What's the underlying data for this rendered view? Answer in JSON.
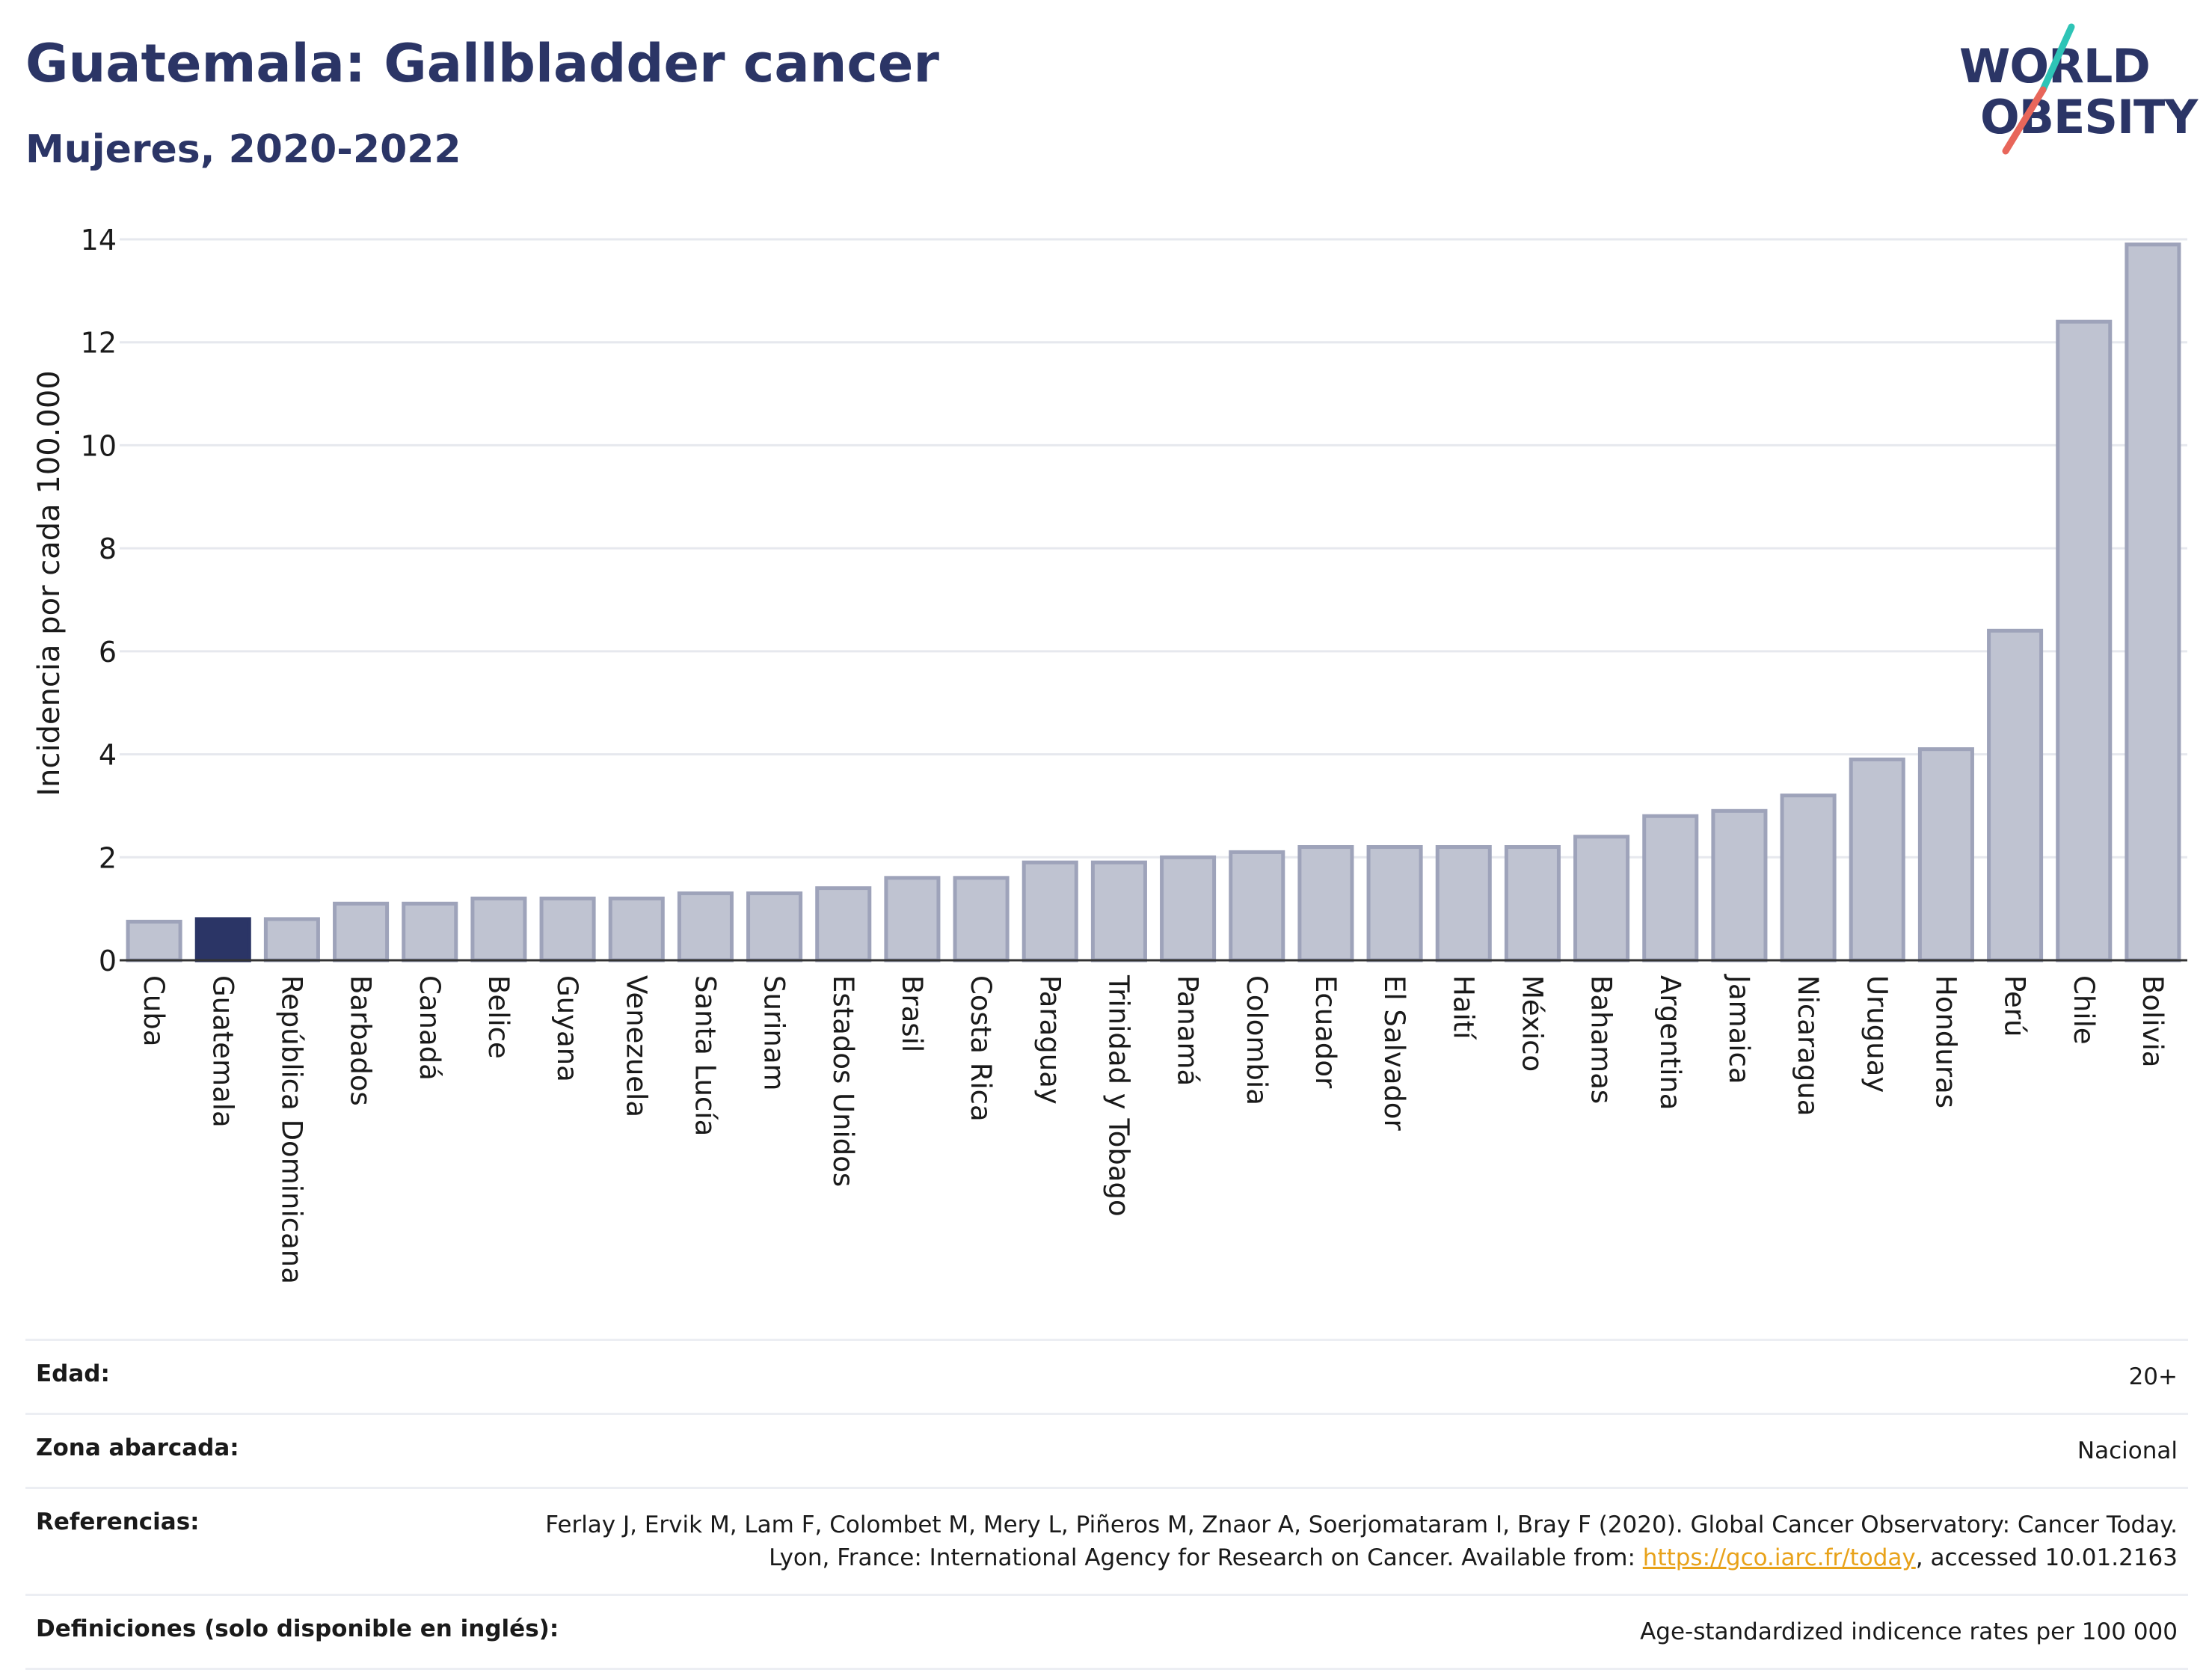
{
  "header": {
    "title": "Guatemala: Gallbladder cancer",
    "subtitle": "Mujeres, 2020-2022"
  },
  "logo": {
    "line1": "WORLD",
    "line2": "OBESITY",
    "slash_colors": [
      "#2ec4b6",
      "#e8665a"
    ]
  },
  "chart_data": {
    "type": "bar",
    "title": "Guatemala: Gallbladder cancer",
    "subtitle": "Mujeres, 2020-2022",
    "ylabel": "Incidencia por cada 100.000",
    "xlabel": "",
    "ylim": [
      0,
      14
    ],
    "yticks": [
      0,
      2,
      4,
      6,
      8,
      10,
      12,
      14
    ],
    "grid": true,
    "highlight": "Guatemala",
    "colors": {
      "highlight": "#2b3566",
      "default": "#bfc3d1",
      "default_stroke": "#9ea3ba",
      "gridline": "#e6e8ee",
      "axis": "#333333"
    },
    "categories": [
      "Cuba",
      "Guatemala",
      "República Dominicana",
      "Barbados",
      "Canadá",
      "Belice",
      "Guyana",
      "Venezuela",
      "Santa Lucía",
      "Surinam",
      "Estados Unidos",
      "Brasil",
      "Costa Rica",
      "Paraguay",
      "Trinidad y Tobago",
      "Panamá",
      "Colombia",
      "Ecuador",
      "El Salvador",
      "Haití",
      "México",
      "Bahamas",
      "Argentina",
      "Jamaica",
      "Nicaragua",
      "Uruguay",
      "Honduras",
      "Perú",
      "Chile",
      "Bolivia"
    ],
    "values": [
      0.75,
      0.8,
      0.8,
      1.1,
      1.1,
      1.2,
      1.2,
      1.2,
      1.3,
      1.3,
      1.4,
      1.6,
      1.6,
      1.9,
      1.9,
      2.0,
      2.1,
      2.2,
      2.2,
      2.2,
      2.2,
      2.4,
      2.8,
      2.9,
      3.2,
      3.9,
      4.1,
      6.4,
      12.4,
      13.9
    ]
  },
  "meta": [
    {
      "key": "Edad:",
      "value": "20+"
    },
    {
      "key": "Zona abarcada:",
      "value": "Nacional"
    },
    {
      "key": "Referencias:",
      "value_before": "Ferlay J, Ervik M, Lam F, Colombet M, Mery L, Piñeros M, Znaor A, Soerjomataram I, Bray F (2020). Global Cancer Observatory: Cancer Today. Lyon, France: International Agency for Research on Cancer. Available from: ",
      "link": "https://gco.iarc.fr/today",
      "value_after": ", accessed 10.01.2163"
    },
    {
      "key": "Definiciones (solo disponible en inglés):",
      "value": "Age-standardized indicence rates per 100 000"
    }
  ]
}
